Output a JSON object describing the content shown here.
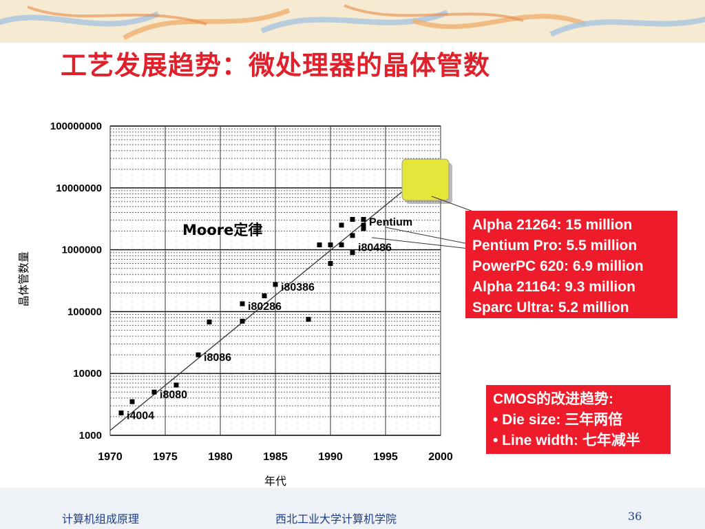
{
  "slide": {
    "title": "工艺发展趋势：微处理器的晶体管数",
    "footer_left": "计算机组成原理",
    "footer_center": "西北工业大学计算机学院",
    "page_number": "36"
  },
  "chart_data": {
    "type": "scatter",
    "title": "",
    "xlabel": "年代",
    "ylabel": "晶体管数量",
    "y_scale": "log",
    "xlim": [
      1970,
      2000
    ],
    "ylim": [
      1000,
      100000000
    ],
    "x_ticks": [
      "1970",
      "1975",
      "1980",
      "1985",
      "1990",
      "1995",
      "2000"
    ],
    "y_ticks": [
      "1000",
      "10000",
      "100000",
      "1000000",
      "10000000",
      "100000000"
    ],
    "grid": true,
    "annotation": "Moore定律",
    "trend_line": {
      "x": [
        1970,
        2000
      ],
      "y": [
        1200,
        28000000
      ]
    },
    "points": [
      {
        "x": 1971,
        "y": 2300
      },
      {
        "x": 1972,
        "y": 3500
      },
      {
        "x": 1974,
        "y": 5000
      },
      {
        "x": 1976,
        "y": 6500
      },
      {
        "x": 1978,
        "y": 20000
      },
      {
        "x": 1979,
        "y": 68000
      },
      {
        "x": 1982,
        "y": 70000
      },
      {
        "x": 1982,
        "y": 134000
      },
      {
        "x": 1984,
        "y": 180000
      },
      {
        "x": 1985,
        "y": 275000
      },
      {
        "x": 1988,
        "y": 75000
      },
      {
        "x": 1989,
        "y": 1200000
      },
      {
        "x": 1990,
        "y": 1200000
      },
      {
        "x": 1990,
        "y": 600000
      },
      {
        "x": 1991,
        "y": 2500000
      },
      {
        "x": 1991,
        "y": 1200000
      },
      {
        "x": 1992,
        "y": 3100000
      },
      {
        "x": 1992,
        "y": 1700000
      },
      {
        "x": 1992,
        "y": 900000
      },
      {
        "x": 1993,
        "y": 3100000
      },
      {
        "x": 1993,
        "y": 2500000
      },
      {
        "x": 1993,
        "y": 2200000
      }
    ],
    "labels": [
      {
        "text": "i4004",
        "x": 1971,
        "y": 2300
      },
      {
        "text": "i8080",
        "x": 1974,
        "y": 5000
      },
      {
        "text": "i8086",
        "x": 1978,
        "y": 20000
      },
      {
        "text": "i80286",
        "x": 1982,
        "y": 134000
      },
      {
        "text": "i80386",
        "x": 1985,
        "y": 275000
      },
      {
        "text": "i80486",
        "x": 1992,
        "y": 1200000
      },
      {
        "text": "Pentium",
        "x": 1993,
        "y": 3100000
      }
    ],
    "callout_lines": [
      "Alpha 21264: 15 million",
      "Pentium Pro: 5.5 million",
      "PowerPC 620: 6.9 million",
      "Alpha 21164: 9.3 million",
      "Sparc Ultra: 5.2 million"
    ],
    "cmos_title": "CMOS的改进趋势:",
    "cmos_lines": [
      "• Die size: 三年两倍",
      "• Line width: 七年减半"
    ],
    "colors": {
      "callout_bg": "#ee1c2b",
      "highlight": "#e6e63a",
      "title": "#e0202a"
    }
  }
}
